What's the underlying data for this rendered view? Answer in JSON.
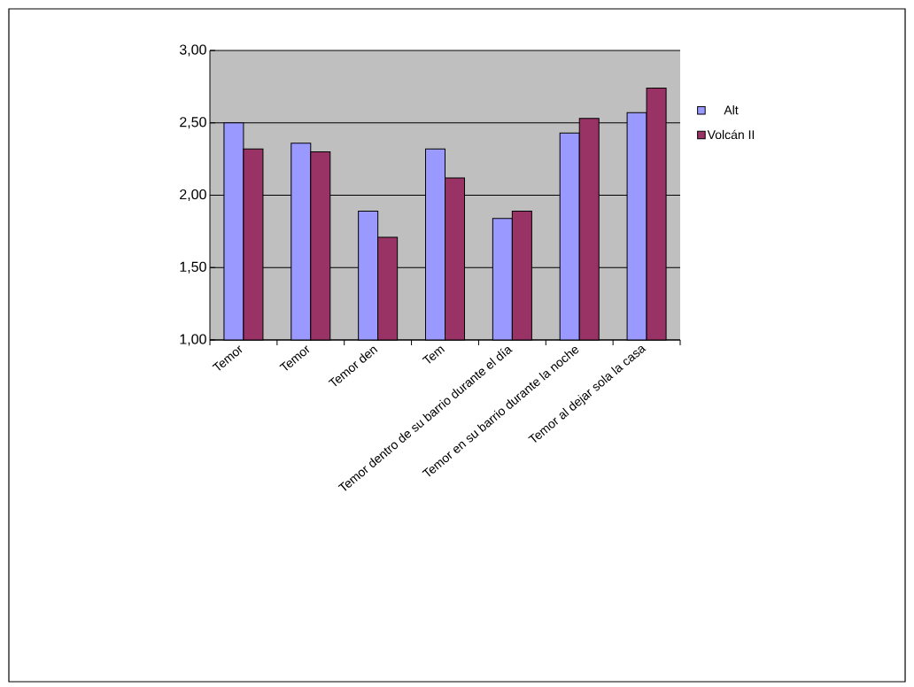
{
  "chart_data": {
    "type": "bar",
    "categories": [
      "Temor",
      "Temor",
      "Temor den",
      "Tem",
      "Temor dentro de su barrio durante el día",
      "Temor en su barrio durante la noche",
      "Temor al dejar sola la casa"
    ],
    "series": [
      {
        "name": "Alt",
        "color": "#9999ff",
        "values": [
          2.5,
          2.36,
          1.89,
          2.32,
          1.84,
          2.43,
          2.57
        ]
      },
      {
        "name": "Volcán II",
        "color": "#993366",
        "values": [
          2.32,
          2.3,
          1.71,
          2.12,
          1.89,
          2.53,
          2.74
        ]
      }
    ],
    "ylim": [
      1,
      3
    ],
    "yticks": [
      {
        "value": 1,
        "label": "1,00"
      },
      {
        "value": 1.5,
        "label": "1,50"
      },
      {
        "value": 2,
        "label": "2,00"
      },
      {
        "value": 2.5,
        "label": "2,50"
      },
      {
        "value": 3,
        "label": "3,00"
      }
    ],
    "grid": "y",
    "legend": "right"
  }
}
